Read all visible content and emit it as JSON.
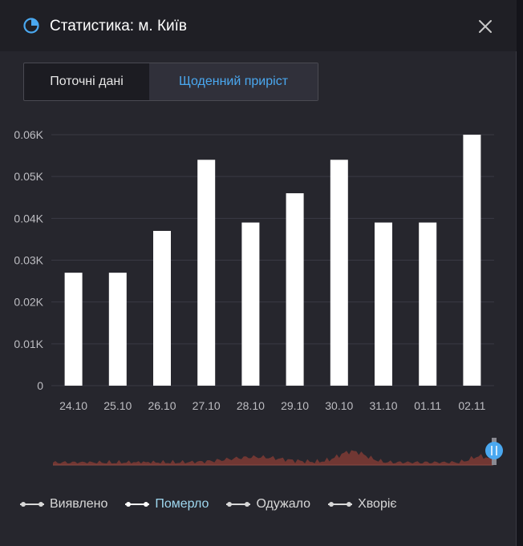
{
  "header": {
    "title": "Статистика: м. Київ"
  },
  "tabs": [
    {
      "label": "Поточні дані"
    },
    {
      "label": "Щоденний приріст"
    }
  ],
  "legend": [
    {
      "label": "Виявлено"
    },
    {
      "label": "Померло"
    },
    {
      "label": "Одужало"
    },
    {
      "label": "Хворіє"
    }
  ],
  "colors": {
    "background": "#26262d",
    "bar": "#ffffff",
    "accent": "#4aa8f0",
    "navigator_area": "#7a3a34",
    "gridline": "#3a3a44"
  },
  "chart_data": {
    "type": "bar",
    "categories": [
      "24.10",
      "25.10",
      "26.10",
      "27.10",
      "28.10",
      "29.10",
      "30.10",
      "31.10",
      "01.11",
      "02.11"
    ],
    "series": [
      {
        "name": "Померло",
        "values": [
          0.027,
          0.027,
          0.037,
          0.054,
          0.039,
          0.046,
          0.054,
          0.039,
          0.039,
          0.06
        ]
      }
    ],
    "y_ticks": [
      {
        "value": 0.06,
        "label": "0.06K"
      },
      {
        "value": 0.05,
        "label": "0.05K"
      },
      {
        "value": 0.04,
        "label": "0.04K"
      },
      {
        "value": 0.03,
        "label": "0.03K"
      },
      {
        "value": 0.02,
        "label": "0.02K"
      },
      {
        "value": 0.01,
        "label": "0.01K"
      },
      {
        "value": 0,
        "label": "0"
      }
    ],
    "ylim": [
      0,
      0.06
    ],
    "grid": true,
    "legend_position": "bottom-left",
    "navigator": true
  }
}
